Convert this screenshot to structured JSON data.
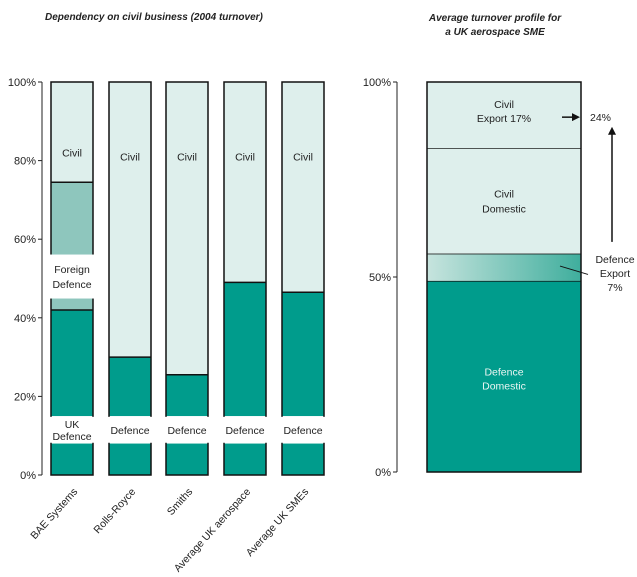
{
  "chart_data": [
    {
      "type": "bar",
      "stacked": true,
      "title": "Dependency on civil business (2004 turnover)",
      "ylim": [
        0,
        100
      ],
      "yticks": [
        "0%",
        "20%",
        "40%",
        "60%",
        "80%",
        "100%"
      ],
      "categories": [
        "BAE Systems",
        "Rolls-Royce",
        "Smiths",
        "Average UK aerospace",
        "Average UK SMEs"
      ],
      "series": [
        {
          "name": "Defence",
          "values": [
            42,
            30,
            25.5,
            49,
            46.5
          ],
          "color": "#009c8c",
          "labels": [
            "UK Defence",
            "Defence",
            "Defence",
            "Defence",
            "Defence"
          ]
        },
        {
          "name": "Foreign Defence",
          "values": [
            32.5,
            0,
            0,
            0,
            0
          ],
          "color": "#8ec6bd",
          "labels": [
            "Foreign Defence",
            "",
            "",
            "",
            ""
          ]
        },
        {
          "name": "Civil",
          "values": [
            25.5,
            70,
            74.5,
            51,
            53.5
          ],
          "color": "#deefec",
          "labels": [
            "Civil",
            "Civil",
            "Civil",
            "Civil",
            "Civil"
          ]
        }
      ]
    },
    {
      "type": "bar",
      "stacked": true,
      "title": "Average turnover profile for a UK aerospace SME",
      "title_lines": [
        "Average turnover profile for",
        "a UK aerospace SME"
      ],
      "ylim": [
        0,
        100
      ],
      "yticks": [
        "0%",
        "50%",
        "100%"
      ],
      "categories": [
        ""
      ],
      "segments": [
        {
          "label_lines": [
            "Defence",
            "Domestic"
          ],
          "value": 49,
          "color": "#009c8c"
        },
        {
          "label_lines": [
            "Defence",
            "Export",
            "7%"
          ],
          "value": 7,
          "color": "#8ec6bd"
        },
        {
          "label_lines": [
            "Civil",
            "Domestic"
          ],
          "value": 27,
          "color": "#deefec"
        },
        {
          "label_lines": [
            "Civil",
            "Export 17%"
          ],
          "value": 17,
          "color": "#deefec"
        }
      ],
      "annotation": "24%"
    }
  ]
}
